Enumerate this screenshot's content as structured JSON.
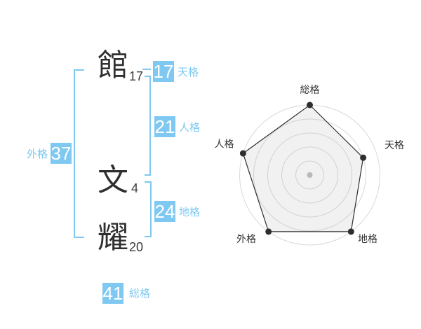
{
  "colors": {
    "accent": "#7ec8f1",
    "kanji_text": "#2f2f2f",
    "stroke_text": "#3a3a3a",
    "badge_text": "#ffffff",
    "chart_label": "#333333",
    "grid": "#d9d9d9",
    "series_line": "#2e2e2e",
    "series_fill": "rgba(170,170,170,0.16)",
    "center_dot": "#bdbdbd"
  },
  "name_diagram": {
    "characters": [
      {
        "char": "館",
        "strokes": "17"
      },
      {
        "char": "文",
        "strokes": "4"
      },
      {
        "char": "耀",
        "strokes": "20"
      }
    ],
    "badges": {
      "tenkaku": {
        "value": "17",
        "label": "天格"
      },
      "jinkaku": {
        "value": "21",
        "label": "人格"
      },
      "chikaku": {
        "value": "24",
        "label": "地格"
      },
      "gaikaku": {
        "value": "37",
        "label": "外格"
      },
      "soukaku": {
        "value": "41",
        "label": "総格"
      }
    }
  },
  "chart_data": {
    "type": "radar",
    "categories": [
      "総格",
      "天格",
      "地格",
      "外格",
      "人格"
    ],
    "values": [
      5,
      4,
      5,
      5,
      5
    ],
    "max": 5,
    "rings": 5,
    "start_axis": "top",
    "direction": "clockwise",
    "grid_shape": "circular",
    "legend": false,
    "title": ""
  }
}
